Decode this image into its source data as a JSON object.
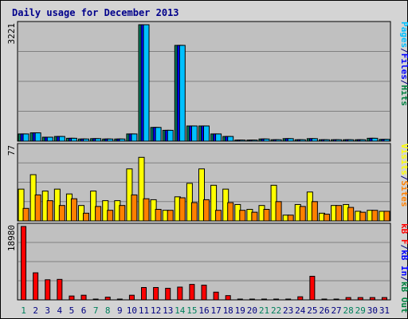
{
  "title": "Daily usage for December 2013",
  "chart_data": [
    {
      "type": "bar",
      "name": "hits-files-pages",
      "categories": [
        "1",
        "2",
        "3",
        "4",
        "5",
        "6",
        "7",
        "8",
        "9",
        "10",
        "11",
        "12",
        "13",
        "14",
        "15",
        "16",
        "17",
        "18",
        "19",
        "20",
        "21",
        "22",
        "23",
        "24",
        "25",
        "26",
        "27",
        "28",
        "29",
        "30",
        "31"
      ],
      "weekend_days": [
        "1",
        "7",
        "8",
        "14",
        "15",
        "21",
        "22",
        "28",
        "29"
      ],
      "ymax_label": "3221",
      "ymax": 3221,
      "legend": [
        {
          "label": "Pages",
          "color": "#00c0ff"
        },
        {
          "label": "/",
          "color": "#000080"
        },
        {
          "label": "Files",
          "color": "#0000ff"
        },
        {
          "label": "/",
          "color": "#000080"
        },
        {
          "label": "Hits",
          "color": "#008040"
        }
      ],
      "series": [
        {
          "name": "Hits",
          "color": "#00805c",
          "values": [
            200,
            230,
            110,
            130,
            80,
            60,
            70,
            60,
            60,
            200,
            3221,
            380,
            300,
            2650,
            420,
            420,
            200,
            130,
            30,
            30,
            60,
            40,
            70,
            40,
            70,
            40,
            40,
            40,
            40,
            80,
            50
          ]
        },
        {
          "name": "Files",
          "color": "#0000ff",
          "values": [
            200,
            230,
            110,
            130,
            80,
            60,
            70,
            60,
            60,
            200,
            3221,
            380,
            300,
            2650,
            420,
            420,
            200,
            130,
            30,
            30,
            60,
            40,
            70,
            40,
            70,
            40,
            40,
            40,
            40,
            80,
            50
          ]
        },
        {
          "name": "Pages",
          "color": "#00c0ff",
          "values": [
            200,
            230,
            110,
            130,
            80,
            60,
            70,
            60,
            60,
            200,
            3221,
            380,
            300,
            2650,
            420,
            420,
            200,
            130,
            30,
            30,
            60,
            40,
            70,
            40,
            70,
            40,
            40,
            40,
            40,
            80,
            50
          ]
        }
      ]
    },
    {
      "type": "bar",
      "name": "visits-sites",
      "ymax_label": "77",
      "ymax": 77,
      "legend": [
        {
          "label": "Visits",
          "color": "#ffff00"
        },
        {
          "label": "/",
          "color": "#000080"
        },
        {
          "label": "Sites",
          "color": "#ff8000"
        }
      ],
      "series": [
        {
          "name": "Visits",
          "color": "#ffff00",
          "values": [
            33,
            48,
            31,
            33,
            28,
            16,
            31,
            21,
            21,
            54,
            66,
            22,
            11,
            25,
            39,
            54,
            37,
            33,
            17,
            12,
            16,
            37,
            6,
            17,
            30,
            8,
            16,
            17,
            10,
            11,
            10
          ]
        },
        {
          "name": "Sites",
          "color": "#ff8000",
          "values": [
            13,
            27,
            21,
            16,
            23,
            8,
            15,
            11,
            16,
            27,
            23,
            12,
            11,
            24,
            19,
            22,
            11,
            19,
            11,
            9,
            12,
            20,
            6,
            15,
            20,
            7,
            16,
            14,
            9,
            11,
            10
          ]
        }
      ]
    },
    {
      "type": "bar",
      "name": "kbytes",
      "ymax_label": "18980",
      "ymax": 18980,
      "legend": [
        {
          "label": "kB F",
          "color": "#ff0000"
        },
        {
          "label": "/",
          "color": "#000080"
        },
        {
          "label": "kB In",
          "color": "#0000ff"
        },
        {
          "label": "/",
          "color": "#000080"
        },
        {
          "label": "kB Out",
          "color": "#008040"
        }
      ],
      "series": [
        {
          "name": "kB F",
          "color": "#ff0000",
          "values": [
            18980,
            7000,
            5200,
            5300,
            1000,
            1200,
            200,
            700,
            200,
            1200,
            3200,
            3200,
            3000,
            3300,
            4000,
            3800,
            2000,
            1100,
            100,
            100,
            100,
            100,
            100,
            800,
            6100,
            200,
            200,
            600,
            600,
            600,
            600
          ]
        }
      ]
    }
  ]
}
